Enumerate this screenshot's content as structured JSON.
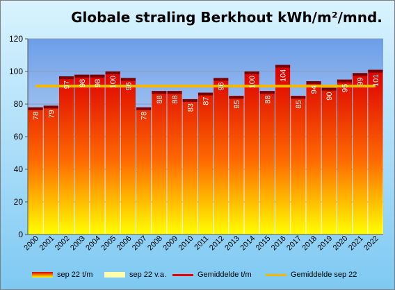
{
  "chart_data": {
    "type": "bar",
    "title": "Globale straling Berkhout kWh/m²/mnd.",
    "categories": [
      "2000",
      "2001",
      "2002",
      "2003",
      "2004",
      "2005",
      "2006",
      "2007",
      "2008",
      "2009",
      "2010",
      "2011",
      "2012",
      "2013",
      "2014",
      "2015",
      "2016",
      "2017",
      "2018",
      "2019",
      "2020",
      "2021",
      "2022"
    ],
    "series": [
      {
        "name": "sep 22 t/m",
        "values": [
          78,
          79,
          97,
          98,
          98,
          100,
          96,
          78,
          88,
          88,
          83,
          87,
          96,
          85,
          100,
          88,
          104,
          85,
          94,
          90,
          95,
          99,
          101
        ]
      },
      {
        "name": "sep 22 v.a.",
        "values": [
          0,
          0,
          0,
          0,
          0,
          0,
          0,
          0,
          0,
          0,
          0,
          0,
          0,
          0,
          0,
          0,
          0,
          0,
          0,
          0,
          0,
          0,
          0
        ]
      },
      {
        "name": "Gemiddelde t/m",
        "values": [
          91,
          91,
          91,
          91,
          91,
          91,
          91,
          91,
          91,
          91,
          91,
          91,
          91,
          91,
          91,
          91,
          91,
          91,
          91,
          91,
          91,
          91,
          91
        ]
      },
      {
        "name": "Gemiddelde sep 22",
        "values": [
          91,
          91,
          91,
          91,
          91,
          91,
          91,
          91,
          91,
          91,
          91,
          91,
          91,
          91,
          91,
          91,
          91,
          91,
          91,
          91,
          91,
          91,
          91
        ]
      }
    ],
    "data_labels": [
      "78",
      "79",
      "97",
      "98",
      "98",
      "100",
      "96",
      "78",
      "88",
      "88",
      "83",
      "87",
      "96",
      "85",
      "100",
      "88",
      "104",
      "85",
      "94",
      "90",
      "95",
      "99",
      "101"
    ],
    "ylim": [
      0,
      120
    ],
    "yticks": [
      "0",
      "20",
      "40",
      "60",
      "80",
      "100",
      "120"
    ],
    "grid": true,
    "legend_position": "bottom",
    "colors": {
      "bar_top": "#dc0000",
      "bar_bottom": "#ffff00",
      "bar_cap": "#7a0000",
      "average_line": "#f5b800",
      "plot_top": "#6c9ee8",
      "plot_bottom": "#f4f8fe"
    }
  },
  "legend": {
    "items": [
      "sep 22 t/m",
      "sep 22 v.a.",
      "Gemiddelde t/m",
      "Gemiddelde sep 22"
    ]
  }
}
